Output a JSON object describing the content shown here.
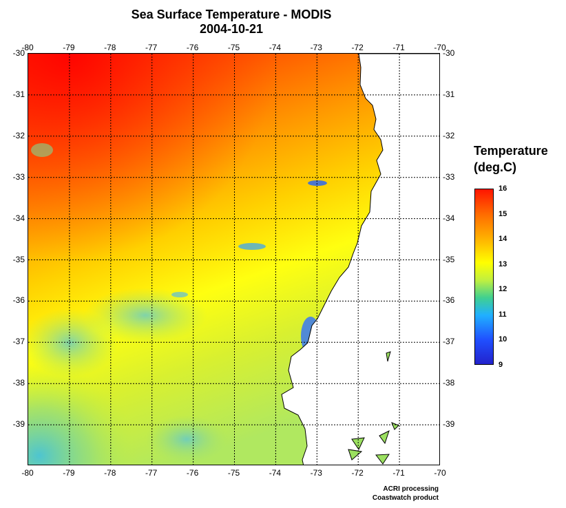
{
  "title": {
    "line1": "Sea Surface Temperature - MODIS",
    "line2": "2004-10-21"
  },
  "lon_ticks": [
    "-80",
    "-79",
    "-78",
    "-77",
    "-76",
    "-75",
    "-74",
    "-73",
    "-72",
    "-71",
    "-70"
  ],
  "lat_ticks": [
    "-30",
    "-31",
    "-32",
    "-33",
    "-34",
    "-35",
    "-36",
    "-37",
    "-38",
    "-39"
  ],
  "lon_range": [
    -80,
    -70
  ],
  "lat_range": [
    -30,
    -40
  ],
  "legend": {
    "title_line1": "Temperature",
    "title_line2": "(deg.C)",
    "labels": [
      "16",
      "15",
      "14",
      "13",
      "12",
      "11",
      "10",
      "9"
    ],
    "min": 9,
    "max": 16
  },
  "credits": {
    "line1": "ACRI processing",
    "line2": "Coastwatch product"
  },
  "colors": {
    "warm": "#ff1500",
    "mid": "#ffff00",
    "cool": "#2050ff",
    "land": "#ffffff",
    "grid": "#000000"
  }
}
